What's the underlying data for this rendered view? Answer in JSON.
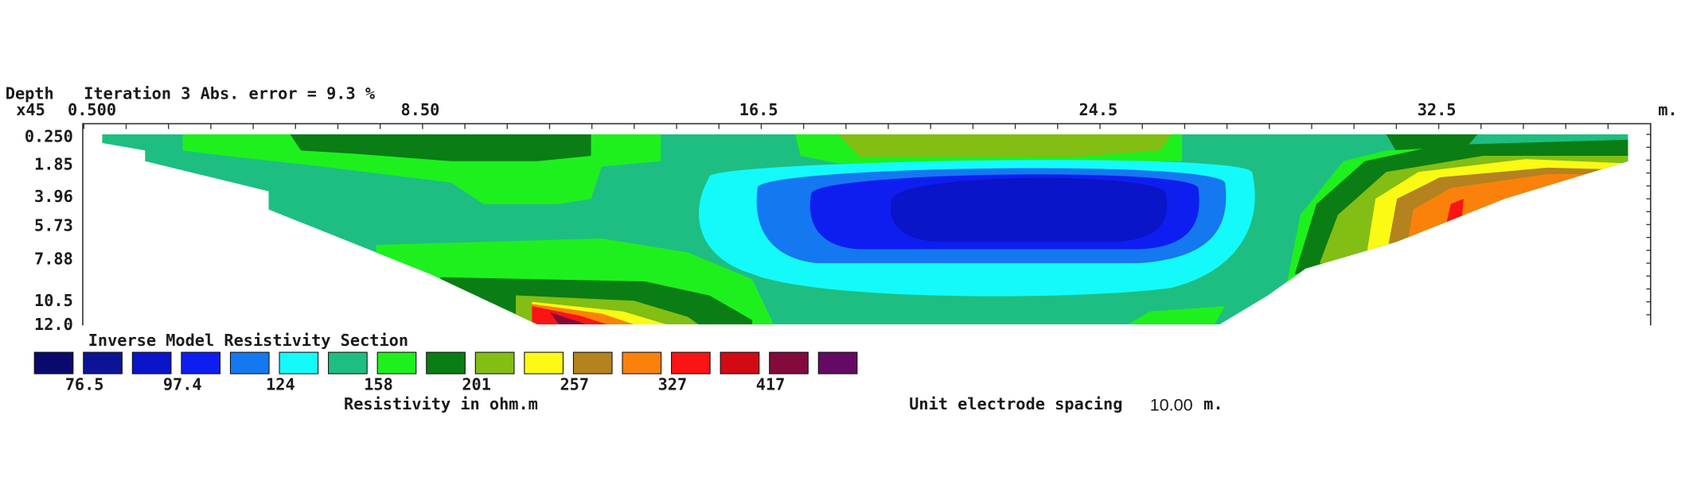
{
  "header": {
    "depth_label": "Depth",
    "iteration": "Iteration 3 Abs. error = 9.3 %",
    "scale": "x45",
    "unit": "m."
  },
  "x_axis": {
    "ticks": [
      "0.500",
      "8.50",
      "16.5",
      "24.5",
      "32.5"
    ]
  },
  "y_axis": {
    "ticks": [
      "0.250",
      "1.85",
      "3.96",
      "5.73",
      "7.88",
      "10.5",
      "12.0"
    ]
  },
  "legend": {
    "title": "Inverse Model Resistivity Section",
    "colors": [
      "#0a0a6e",
      "#0c1496",
      "#0a14c8",
      "#0f1ef0",
      "#1478f0",
      "#14fafa",
      "#1ebe82",
      "#1ef01e",
      "#0a7d14",
      "#82be14",
      "#fafa14",
      "#b4821e",
      "#fa820a",
      "#fa1414",
      "#d20a14",
      "#820a3c",
      "#640a64"
    ],
    "labels": [
      "76.5",
      "97.4",
      "124",
      "158",
      "201",
      "257",
      "327",
      "417"
    ],
    "unit_label": "Resistivity in ohm.m"
  },
  "footer": {
    "spacing_label": "Unit electrode spacing",
    "spacing_value": "10.00",
    "spacing_unit": "m."
  }
}
